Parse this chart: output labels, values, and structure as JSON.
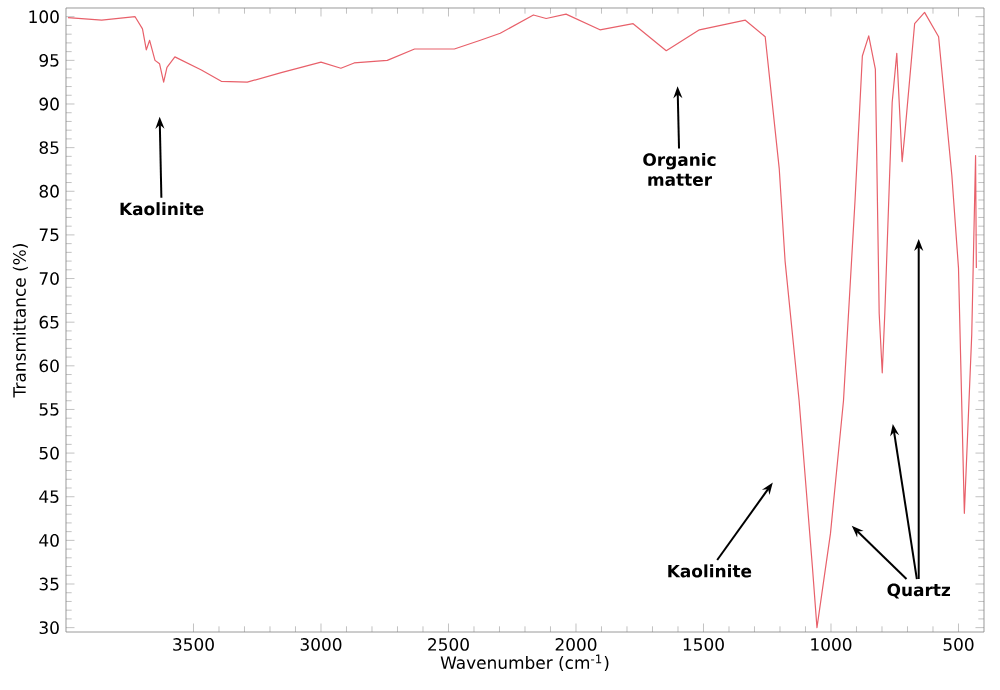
{
  "chart_data": {
    "type": "line",
    "xlabel": "Wavenumber (cm$^{-1}$)",
    "ylabel": "Transmittance (%)",
    "xlim": [
      4000,
      400
    ],
    "ylim": [
      29.5,
      101
    ],
    "xticks": [
      3500,
      3000,
      2500,
      2000,
      1500,
      1000,
      500
    ],
    "yticks": [
      30,
      35,
      40,
      45,
      50,
      55,
      60,
      65,
      70,
      75,
      80,
      85,
      90,
      95,
      100
    ],
    "grid": false,
    "marker": "none",
    "line_style": "solid",
    "series": [
      {
        "color": "#e8606a",
        "x": [
          3992,
          3860,
          3729,
          3700,
          3685,
          3672,
          3651,
          3633,
          3617,
          3604,
          3573,
          3469,
          3391,
          3289,
          3156,
          3000,
          2922,
          2870,
          2740,
          2633,
          2477,
          2375,
          2297,
          2167,
          2117,
          2039,
          1906,
          1776,
          1646,
          1516,
          1336,
          1258,
          1203,
          1180,
          1125,
          1073,
          1055,
          1002,
          951,
          906,
          877,
          852,
          826,
          811,
          799,
          789,
          760,
          742,
          721,
          711,
          672,
          633,
          578,
          526,
          500,
          477,
          448,
          433,
          430
        ],
        "values": [
          99.9,
          99.6,
          100,
          98.6,
          96.2,
          97.3,
          95,
          94.6,
          92.5,
          94.2,
          95.4,
          93.9,
          92.6,
          92.5,
          93.6,
          94.8,
          94.1,
          94.7,
          95,
          96.3,
          96.3,
          97.3,
          98.1,
          100.2,
          99.8,
          100.3,
          98.5,
          99.2,
          96.1,
          98.5,
          99.6,
          97.7,
          82.6,
          72,
          56,
          37,
          30,
          40.8,
          56,
          78.8,
          95.5,
          97.8,
          94,
          66,
          59.2,
          66,
          90.2,
          95.8,
          83.4,
          86.4,
          99.2,
          100.5,
          97.7,
          81.8,
          71.2,
          43.1,
          63.6,
          84.1,
          71.2
        ]
      }
    ],
    "annotations": [
      "Kaolinite",
      "Organic matter",
      "Kaolinite",
      "Quartz"
    ]
  }
}
